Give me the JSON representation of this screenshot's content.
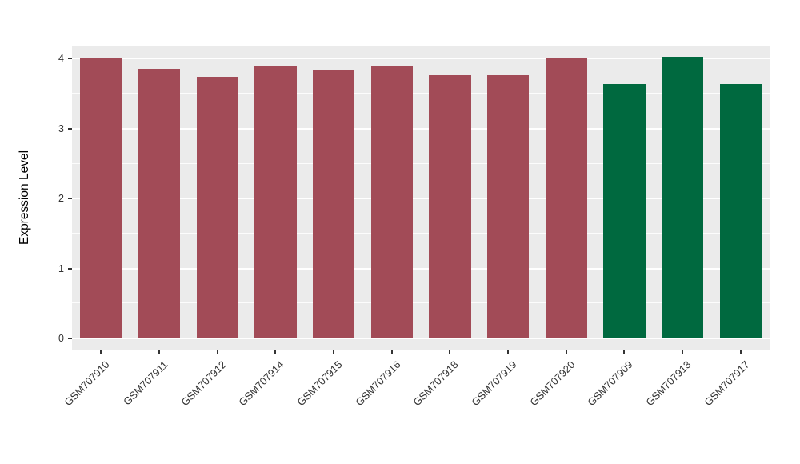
{
  "figure": {
    "background": "#FFFFFF",
    "panel_background": "#EBEBEB",
    "gridline_color": "#FFFFFF",
    "axis_text_color": "#333333",
    "tick_color": "#333333"
  },
  "chart_data": {
    "type": "bar",
    "title": "",
    "xlabel": "",
    "ylabel": "Expression Level",
    "ylim": [
      0,
      4.2
    ],
    "yticks": [
      0,
      1,
      2,
      3,
      4
    ],
    "yticks_minor": [
      0.5,
      1.5,
      2.5,
      3.5
    ],
    "grid": true,
    "legend_position": "none",
    "categories": [
      "GSM707910",
      "GSM707911",
      "GSM707912",
      "GSM707914",
      "GSM707915",
      "GSM707916",
      "GSM707918",
      "GSM707919",
      "GSM707920",
      "GSM707909",
      "GSM707913",
      "GSM707917"
    ],
    "series": [
      {
        "name": "Expression Level",
        "values": [
          4.02,
          3.86,
          3.74,
          3.9,
          3.83,
          3.9,
          3.76,
          3.77,
          4.01,
          3.64,
          4.03,
          3.64
        ]
      }
    ],
    "bar_groups": [
      "maroon",
      "maroon",
      "maroon",
      "maroon",
      "maroon",
      "maroon",
      "maroon",
      "maroon",
      "maroon",
      "green",
      "green",
      "green"
    ],
    "group_colors": {
      "maroon": "#A24B57",
      "green": "#00693F"
    }
  }
}
